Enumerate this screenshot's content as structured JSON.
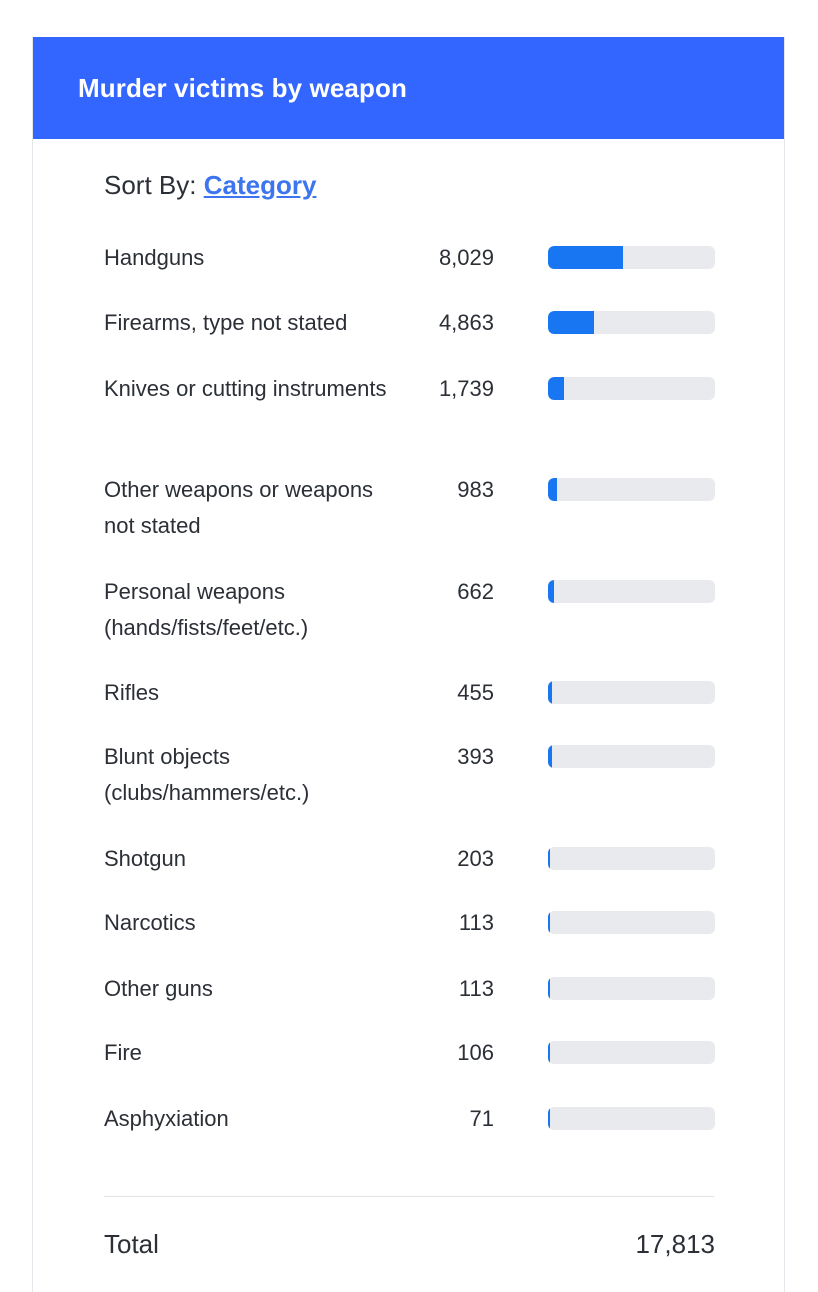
{
  "header": {
    "title": "Murder victims by weapon"
  },
  "sort": {
    "prefix": "Sort By:",
    "link_label": "Category"
  },
  "colors": {
    "header_bg": "#3366ff",
    "bar_fill": "#1976f2",
    "bar_track": "#e8eaee",
    "link": "#3d74f0"
  },
  "chart_data": {
    "type": "bar",
    "title": "Murder victims by weapon",
    "categories": [
      "Handguns",
      "Firearms, type not stated",
      "Knives or cutting instruments",
      "Other weapons or weapons not stated",
      "Personal weapons (hands/fists/feet/etc.)",
      "Rifles",
      "Blunt objects (clubs/hammers/etc.)",
      "Shotgun",
      "Narcotics",
      "Other guns",
      "Fire",
      "Asphyxiation"
    ],
    "values": [
      8029,
      4863,
      1739,
      983,
      662,
      455,
      393,
      203,
      113,
      113,
      106,
      71
    ],
    "value_labels": [
      "8,029",
      "4,863",
      "1,739",
      "983",
      "662",
      "455",
      "393",
      "203",
      "113",
      "113",
      "106",
      "71"
    ],
    "total_label": "Total",
    "total_value": "17,813",
    "xlim": [
      0,
      17813
    ]
  }
}
